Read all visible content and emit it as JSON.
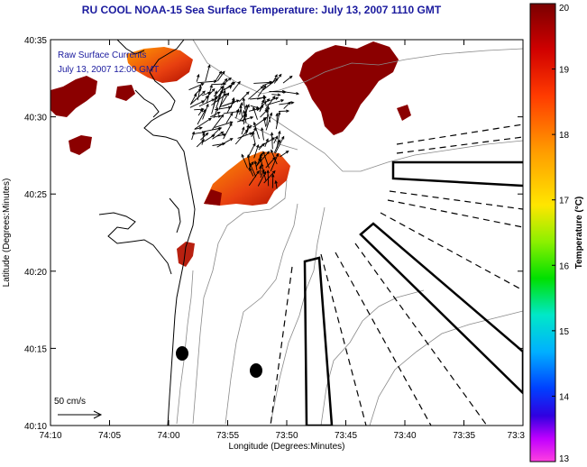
{
  "title": "RU COOL  NOAA-15  Sea Surface Temperature:  July 13, 2007 1110 GMT",
  "legend": {
    "line1": "Raw Surface Currents",
    "line2": "July 13, 2007 12:00 GMT",
    "scale_label": "50 cm/s"
  },
  "axes": {
    "xlabel": "Longitude (Degrees:Minutes)",
    "ylabel": "Latitude (Degrees:Minutes)",
    "x_ticks": [
      "74:10",
      "74:05",
      "74:00",
      "73:55",
      "73:50",
      "73:45",
      "73:40",
      "73:35",
      "73:3"
    ],
    "y_ticks": [
      "40:35",
      "40:30",
      "40:25",
      "40:20",
      "40:15",
      "40:10"
    ]
  },
  "colorbar": {
    "label": "Temperature (°C)",
    "min": 13,
    "max": 20,
    "ticks": [
      "20",
      "19",
      "18",
      "17",
      "16",
      "15",
      "14",
      "13"
    ]
  },
  "colors": {
    "title": "#1a1a9e",
    "legend_text": "#1a1a9e",
    "sst_hot": "#8b0000",
    "sst_warm": "#e8401a"
  }
}
